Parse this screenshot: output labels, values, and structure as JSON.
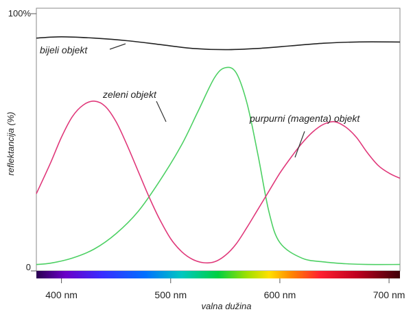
{
  "chart_data": {
    "type": "line",
    "title": "",
    "xlabel": "valna dužina",
    "ylabel": "reflektancija (%)",
    "xlim": [
      377,
      710
    ],
    "ylim": [
      0,
      100
    ],
    "x_unit": "nm",
    "x_ticks": [
      {
        "value": 400,
        "label": "400 nm"
      },
      {
        "value": 500,
        "label": "500 nm"
      },
      {
        "value": 600,
        "label": "600 nm"
      },
      {
        "value": 700,
        "label": "700 nm"
      }
    ],
    "y_ticks": [
      {
        "value": 100,
        "label": "100%"
      },
      {
        "value": 0,
        "label": "0"
      }
    ],
    "grid": false,
    "legend": "none",
    "spectrum_bar": true,
    "series": [
      {
        "name": "bijeli objekt",
        "color": "#222222",
        "x": [
          377,
          400,
          430,
          460,
          490,
          520,
          550,
          580,
          610,
          640,
          670,
          710
        ],
        "y": [
          90.5,
          91,
          90.5,
          89.5,
          88,
          86.5,
          86,
          86.5,
          87.5,
          88.5,
          89,
          89
        ]
      },
      {
        "name": "zeleni objekt",
        "color": "#4cd063",
        "x": [
          377,
          390,
          410,
          430,
          450,
          470,
          490,
          510,
          525,
          540,
          550,
          560,
          570,
          580,
          590,
          600,
          620,
          640,
          660,
          680,
          710
        ],
        "y": [
          2.5,
          3,
          5,
          8.5,
          14.5,
          23,
          35,
          49,
          62,
          75,
          79,
          77,
          65,
          45,
          23,
          11,
          5,
          3.5,
          2.8,
          2.5,
          2.5
        ]
      },
      {
        "name": "purpurni (magenta) objekt",
        "color": "#e0387a",
        "x": [
          377,
          390,
          400,
          410,
          420,
          430,
          440,
          450,
          460,
          470,
          480,
          490,
          500,
          510,
          520,
          530,
          540,
          550,
          560,
          570,
          580,
          590,
          600,
          610,
          620,
          630,
          640,
          650,
          660,
          670,
          680,
          690,
          700,
          710
        ],
        "y": [
          30,
          42,
          52,
          60,
          64.5,
          66,
          64,
          58,
          49,
          39,
          29,
          20,
          12.5,
          7.5,
          4.5,
          3.2,
          3.5,
          6,
          10.5,
          17,
          24,
          31,
          38,
          44,
          49.5,
          54,
          57,
          58,
          56,
          52,
          46,
          41,
          38,
          36
        ]
      }
    ],
    "annotations": [
      {
        "text": "bijeli objekt",
        "series": "bijeli objekt"
      },
      {
        "text": "zeleni objekt",
        "series": "zeleni objekt"
      },
      {
        "text": "purpurni (magenta) objekt",
        "series": "purpurni (magenta) objekt"
      }
    ]
  }
}
